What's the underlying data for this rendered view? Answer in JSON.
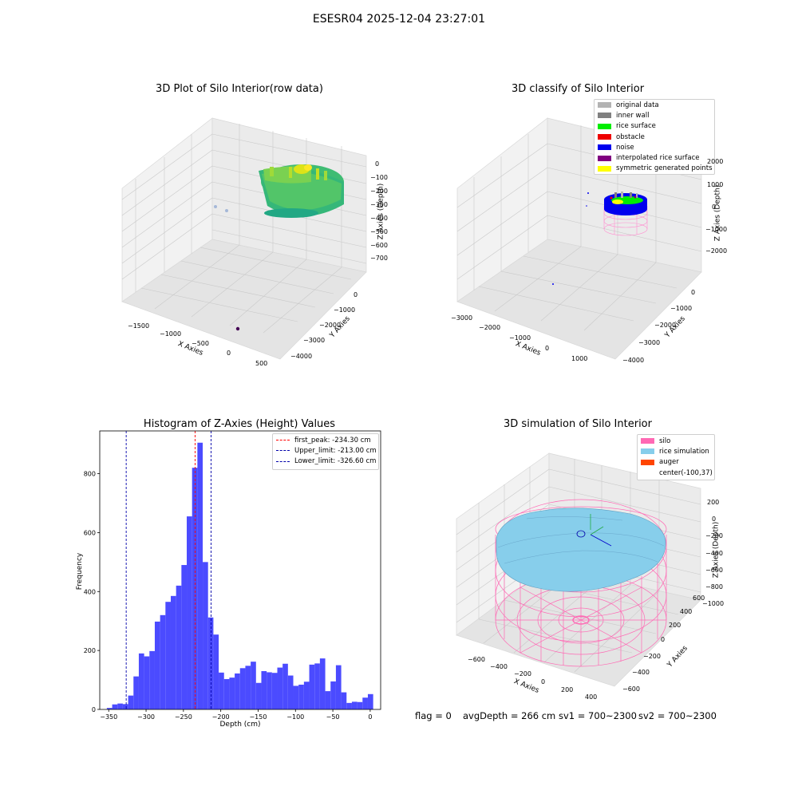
{
  "suptitle": "ESESR04 2025-12-04 23:27:01",
  "plot1": {
    "title": "3D Plot of Silo Interior(row data)",
    "xlabel": "X Axies",
    "ylabel": "Y Axies",
    "zlabel": "Z Axies (Depth)",
    "xticks": [
      "−1500",
      "−1000",
      "−500",
      "0",
      "500"
    ],
    "yticks": [
      "−4000",
      "−3000",
      "−2000",
      "−1000",
      "0"
    ],
    "zticks": [
      "0",
      "−100",
      "−200",
      "−300",
      "−400",
      "−500",
      "−600",
      "−700"
    ],
    "colors": {
      "surface_low": "#2fb47c",
      "surface_mid": "#5ec962",
      "surface_high": "#c8e020",
      "peak": "#fde725",
      "outlier_dark": "#440154",
      "outlier_light": "#a5b8d8"
    }
  },
  "plot2": {
    "title": "3D classify of Silo Interior",
    "xlabel": "X Axies",
    "ylabel": "Y Axies",
    "zlabel": "Z Axies (Depth)",
    "xticks": [
      "−3000",
      "−2000",
      "−1000",
      "0",
      "1000"
    ],
    "yticks": [
      "−4000",
      "−3000",
      "−2000",
      "−1000",
      "0"
    ],
    "zticks": [
      "2000",
      "1000",
      "0",
      "−1000",
      "−2000"
    ],
    "legend": [
      {
        "label": "original data",
        "color": "#b3b3b3"
      },
      {
        "label": "inner wall",
        "color": "#808080"
      },
      {
        "label": "rice surface",
        "color": "#00ee00"
      },
      {
        "label": "obstacle",
        "color": "#ee0000"
      },
      {
        "label": "noise",
        "color": "#0000ee"
      },
      {
        "label": "interpolated rice surface",
        "color": "#800080"
      },
      {
        "label": "symmetric generated points",
        "color": "#ffff00"
      }
    ]
  },
  "plot3": {
    "title": "Histogram of Z-Axies (Height) Values",
    "xlabel": "Depth (cm)",
    "ylabel": "Frequency",
    "legend": [
      {
        "label": "first_peak: -234.30 cm",
        "color": "#ff0000"
      },
      {
        "label": "Upper_limit: -213.00 cm",
        "color": "#0000aa"
      },
      {
        "label": "Lower_limit: -326.60 cm",
        "color": "#0000aa"
      }
    ]
  },
  "plot4": {
    "title": "3D simulation of Silo Interior",
    "xlabel": "X Axies",
    "ylabel": "Y Axies",
    "zlabel": "Z Axies (Depth)",
    "xticks": [
      "−600",
      "−400",
      "−200",
      "0",
      "200",
      "400"
    ],
    "yticks": [
      "−600",
      "−400",
      "−200",
      "0",
      "200",
      "400",
      "600"
    ],
    "zticks": [
      "200",
      "0",
      "−200",
      "−400",
      "−600",
      "−800",
      "−1000"
    ],
    "legend": [
      {
        "label": "silo",
        "color": "#ff69b4"
      },
      {
        "label": "rice simulation",
        "color": "#87ceeb"
      },
      {
        "label": "auger",
        "color": "#ff4500"
      },
      {
        "label": "center(-100,37)",
        "color": ""
      }
    ]
  },
  "status": {
    "flag": "flag = 0",
    "avg": "avgDepth = 266 cm",
    "sv1": "sv1 = 700~2300",
    "sv2": "sv2 = 700~2300"
  },
  "chart_data": [
    {
      "type": "scatter",
      "title": "3D Plot of Silo Interior(row data)",
      "xlabel": "X Axies",
      "ylabel": "Y Axies",
      "zlabel": "Z Axies (Depth)",
      "xlim": [
        -1700,
        600
      ],
      "ylim": [
        -4200,
        300
      ],
      "zlim": [
        -780,
        40
      ],
      "grid": true
    },
    {
      "type": "scatter",
      "title": "3D classify of Silo Interior",
      "xlabel": "X Axies",
      "ylabel": "Y Axies",
      "zlabel": "Z Axies (Depth)",
      "xlim": [
        -3200,
        1500
      ],
      "ylim": [
        -4200,
        300
      ],
      "zlim": [
        -2600,
        2600
      ],
      "series": [
        {
          "name": "original data"
        },
        {
          "name": "inner wall"
        },
        {
          "name": "rice surface"
        },
        {
          "name": "obstacle"
        },
        {
          "name": "noise"
        },
        {
          "name": "interpolated rice surface"
        },
        {
          "name": "symmetric generated points"
        }
      ],
      "legend": "top-right",
      "grid": true
    },
    {
      "type": "bar",
      "title": "Histogram of Z-Axies (Height) Values",
      "xlabel": "Depth (cm)",
      "ylabel": "Frequency",
      "bin_width": 7.13,
      "bin_start": -352.5,
      "values": [
        5,
        17,
        20,
        18,
        47,
        112,
        190,
        180,
        198,
        298,
        320,
        365,
        385,
        420,
        490,
        655,
        820,
        905,
        500,
        312,
        254,
        125,
        103,
        108,
        122,
        140,
        148,
        162,
        90,
        130,
        126,
        124,
        142,
        155,
        115,
        80,
        84,
        94,
        152,
        156,
        173,
        62,
        95,
        150,
        58,
        22,
        26,
        25,
        40,
        52
      ],
      "xticks": [
        -350,
        -300,
        -250,
        -200,
        -150,
        -100,
        -50,
        0
      ],
      "yticks": [
        0,
        200,
        400,
        600,
        800
      ],
      "xlim": [
        -362,
        14
      ],
      "ylim": [
        0,
        945
      ],
      "vlines": [
        {
          "name": "first_peak",
          "x": -234.3,
          "color": "#ff0000"
        },
        {
          "name": "Upper_limit",
          "x": -213.0,
          "color": "#0000aa"
        },
        {
          "name": "Lower_limit",
          "x": -326.6,
          "color": "#0000aa"
        }
      ],
      "bar_color": "#4b4bff",
      "legend": "top-right"
    },
    {
      "type": "scatter",
      "title": "3D simulation of Silo Interior",
      "xlabel": "X Axies",
      "ylabel": "Y Axies",
      "zlabel": "Z Axies (Depth)",
      "xlim": [
        -700,
        500
      ],
      "ylim": [
        -650,
        650
      ],
      "zlim": [
        -1050,
        280
      ],
      "series": [
        {
          "name": "silo"
        },
        {
          "name": "rice simulation"
        },
        {
          "name": "auger"
        },
        {
          "name": "center(-100,37)"
        }
      ],
      "legend": "top-right",
      "grid": true
    }
  ]
}
